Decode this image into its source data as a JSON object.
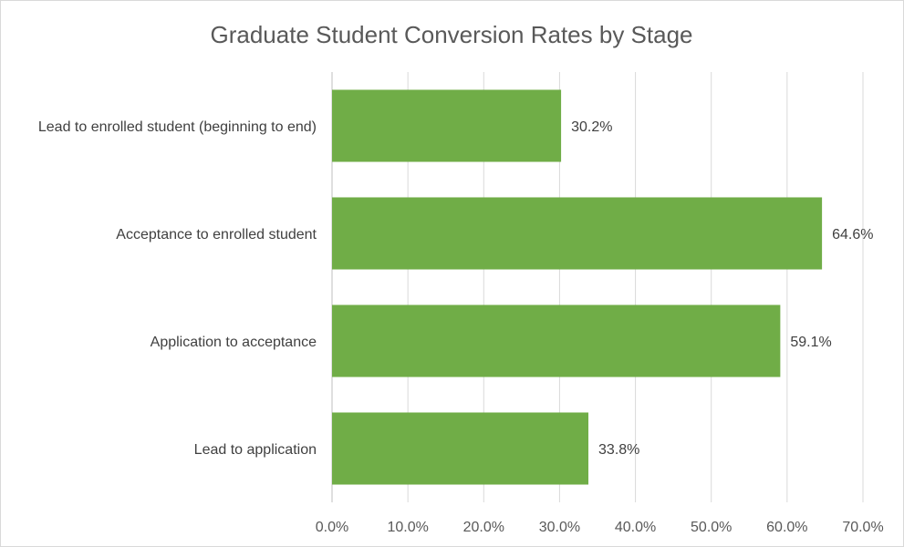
{
  "chart_data": {
    "type": "bar",
    "orientation": "horizontal",
    "title": "Graduate Student Conversion Rates by Stage",
    "xlabel": "",
    "ylabel": "",
    "categories": [
      "Lead to enrolled student (beginning to end)",
      "Acceptance to enrolled student",
      "Application to acceptance",
      "Lead to application"
    ],
    "values": [
      30.2,
      64.6,
      59.1,
      33.8
    ],
    "data_labels": [
      "30.2%",
      "64.6%",
      "59.1%",
      "33.8%"
    ],
    "xlim": [
      0,
      70
    ],
    "x_ticks": [
      0,
      10,
      20,
      30,
      40,
      50,
      60,
      70
    ],
    "x_tick_labels": [
      "0.0%",
      "10.0%",
      "20.0%",
      "30.0%",
      "40.0%",
      "50.0%",
      "60.0%",
      "70.0%"
    ],
    "grid": "vertical",
    "legend": "none",
    "bar_color": "#70ad47"
  }
}
